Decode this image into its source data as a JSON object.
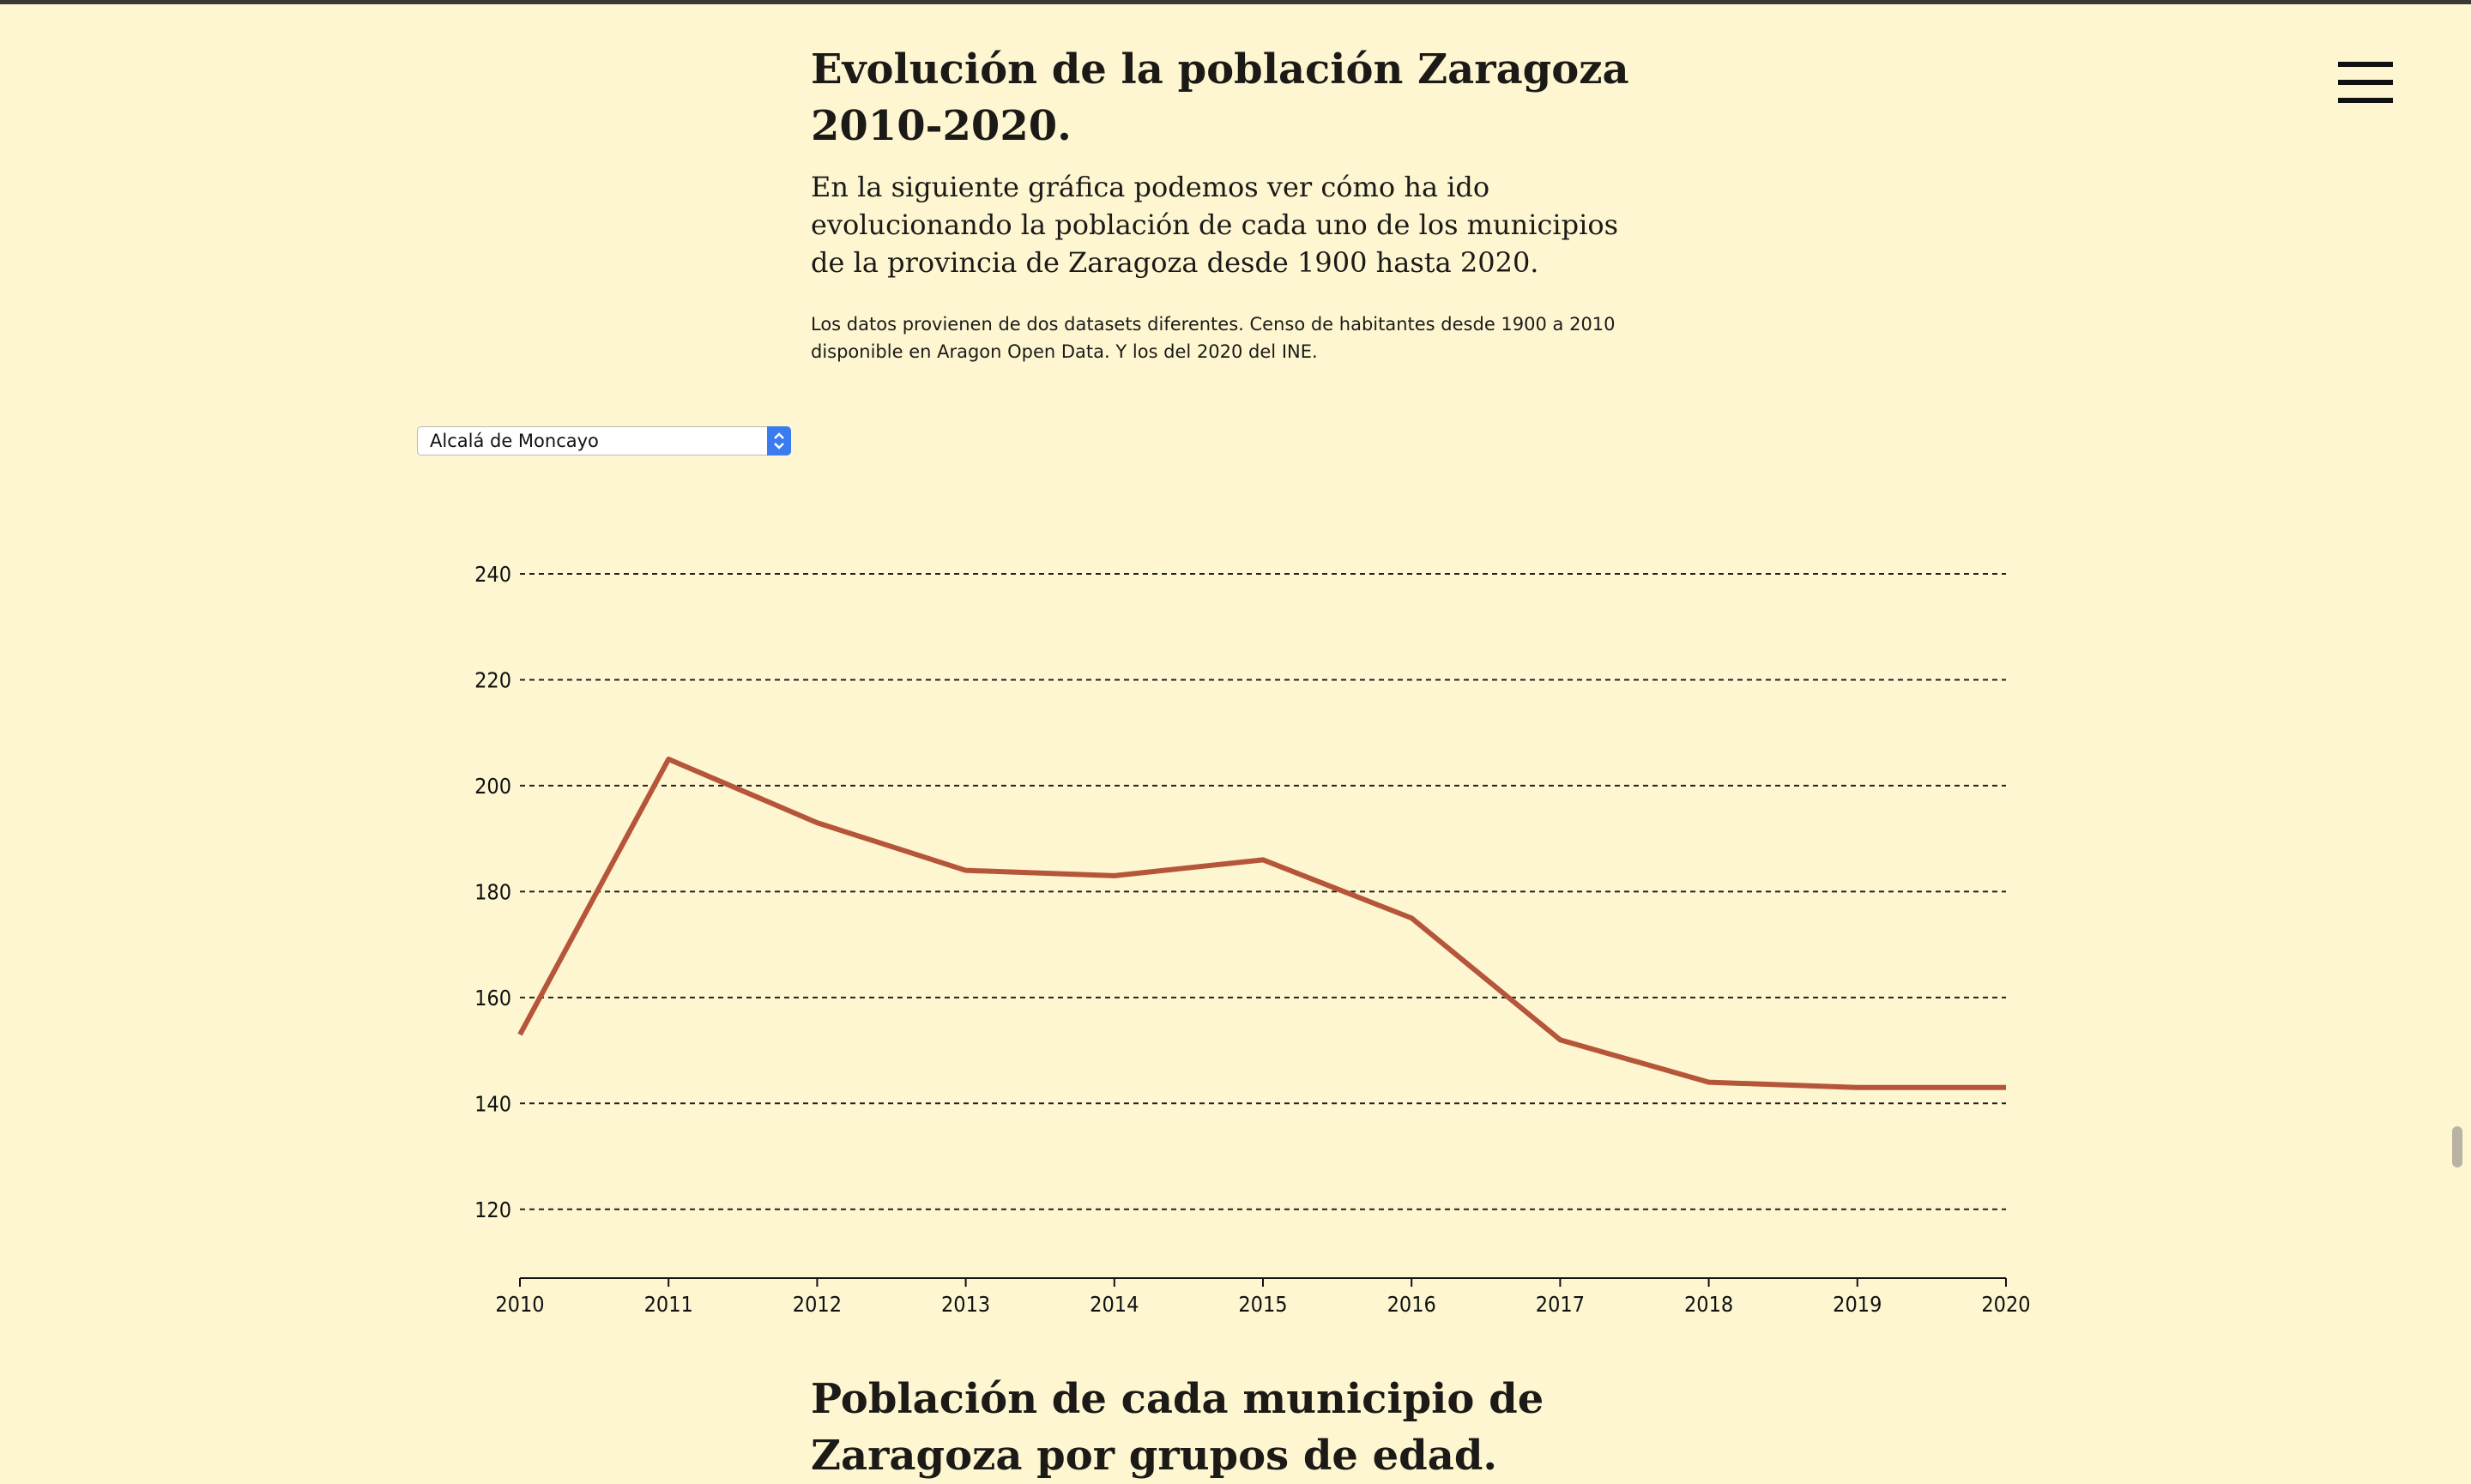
{
  "page": {
    "title": "Evolución de la población Zaragoza 2010-2020.",
    "intro": "En la siguiente gráfica podemos ver cómo ha ido evolucionando la población de cada uno de los municipios de la provincia de Zaragoza desde 1900 hasta 2020.",
    "note": "Los datos provienen de dos datasets diferentes. Censo de habitantes desde 1900 a 2010 disponible en Aragon Open Data. Y los del 2020 del INE.",
    "next_section_title": "Población de cada municipio de Zaragoza por grupos de edad."
  },
  "municipality_select": {
    "selected": "Alcalá de Moncayo"
  },
  "colors": {
    "background": "#fdf6d1",
    "line": "#b5553a"
  },
  "chart_data": {
    "type": "line",
    "x": [
      2010,
      2011,
      2012,
      2013,
      2014,
      2015,
      2016,
      2017,
      2018,
      2019,
      2020
    ],
    "series": [
      {
        "values": [
          153,
          205,
          193,
          184,
          183,
          186,
          175,
          152,
          144,
          143,
          143
        ]
      }
    ],
    "xlim": [
      2010,
      2020
    ],
    "ylim": [
      107,
      240
    ],
    "y_ticks": [
      120,
      140,
      160,
      180,
      200,
      220,
      240
    ],
    "grid": "horizontal dashed",
    "legend": "none"
  }
}
